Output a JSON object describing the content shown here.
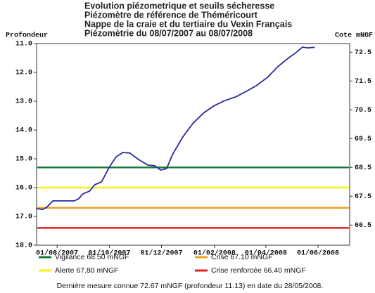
{
  "chart_data": {
    "type": "line",
    "title": [
      "Evolution piézometrique et seuils sécheresse",
      "Piézomètre de référence de Théméricourt",
      "Nappe de la craie et du tertiaire du Vexin Français",
      "Piézomètrie du 08/07/2007 au 08/07/2008"
    ],
    "ylabel": "Profondeur",
    "y2label": "Cote mNGF",
    "xlim": [
      "2007-07-08",
      "2008-07-08"
    ],
    "xticks": [
      {
        "value": "2007-08-01",
        "label": "01/08/2007"
      },
      {
        "value": "2007-10-01",
        "label": "01/10/2007"
      },
      {
        "value": "2007-12-01",
        "label": "01/12/2007"
      },
      {
        "value": "2008-02-01",
        "label": "01/02/2008"
      },
      {
        "value": "2008-04-01",
        "label": "01/04/2008"
      },
      {
        "value": "2008-06-01",
        "label": "01/06/2008"
      }
    ],
    "ylim": [
      18,
      11
    ],
    "yticks": [
      {
        "value": 11,
        "label": "11.0"
      },
      {
        "value": 12,
        "label": "12.0"
      },
      {
        "value": 13,
        "label": "13.0"
      },
      {
        "value": 14,
        "label": "14.0"
      },
      {
        "value": 15,
        "label": "15.0"
      },
      {
        "value": 16,
        "label": "16.0"
      },
      {
        "value": 17,
        "label": "17.0"
      },
      {
        "value": 18,
        "label": "18.0"
      }
    ],
    "y2lim": [
      65.8,
      72.8
    ],
    "y2ticks": [
      66.5,
      67.5,
      68.5,
      69.5,
      70.5,
      71.5,
      72.5
    ],
    "series": [
      {
        "color": "#2a2a9a",
        "x": [
          "2007-07-08",
          "2007-07-15",
          "2007-07-20",
          "2007-07-27",
          "2007-08-08",
          "2007-08-21",
          "2007-08-26",
          "2007-08-31",
          "2007-09-08",
          "2007-09-14",
          "2007-09-22",
          "2007-10-01",
          "2007-10-09",
          "2007-10-17",
          "2007-10-25",
          "2007-11-03",
          "2007-11-15",
          "2007-11-23",
          "2007-11-30",
          "2007-12-07",
          "2007-12-14",
          "2007-12-26",
          "2008-01-07",
          "2008-01-20",
          "2008-02-01",
          "2008-02-13",
          "2008-02-26",
          "2008-03-09",
          "2008-03-21",
          "2008-04-03",
          "2008-04-15",
          "2008-04-27",
          "2008-05-06",
          "2008-05-14",
          "2008-05-20",
          "2008-05-28"
        ],
        "values": [
          16.73,
          16.76,
          16.68,
          16.46,
          16.46,
          16.46,
          16.39,
          16.22,
          16.12,
          15.9,
          15.8,
          15.29,
          14.93,
          14.78,
          14.8,
          15.0,
          15.22,
          15.24,
          15.39,
          15.34,
          14.85,
          14.24,
          13.76,
          13.39,
          13.15,
          12.98,
          12.85,
          12.66,
          12.46,
          12.17,
          11.8,
          11.51,
          11.32,
          11.12,
          11.15,
          11.13
        ]
      }
    ],
    "thresholds": [
      {
        "name": "Vigilance 68.50 mNGF",
        "value": 68.5,
        "color": "#1a7a3a"
      },
      {
        "name": "Crise 67.10 mNGF",
        "value": 67.1,
        "color": "#f0a020"
      },
      {
        "name": "Alerte 67.80 mNGF",
        "value": 67.8,
        "color": "#f2f21a"
      },
      {
        "name": "Crise renforcée 66.40 mNGF",
        "value": 66.4,
        "color": "#e02020"
      }
    ],
    "footnote": "Dernière mesure connue 72.67 mNGF (profondeur  11.13) en date du 28/05/2008."
  }
}
